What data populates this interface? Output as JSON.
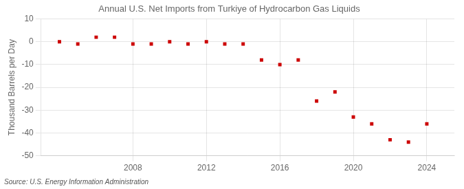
{
  "chart_data": {
    "type": "scatter",
    "title": "Annual U.S. Net Imports from Turkiye of Hydrocarbon Gas Liquids",
    "y_label": "Thousand Barrels per Day",
    "annotation": "Source: U.S. Energy Information Administration",
    "x": [
      2004,
      2005,
      2006,
      2007,
      2008,
      2009,
      2010,
      2011,
      2012,
      2013,
      2014,
      2015,
      2016,
      2017,
      2018,
      2019,
      2020,
      2021,
      2022,
      2023,
      2024
    ],
    "values": [
      0,
      -1,
      2,
      2,
      -1,
      -1,
      0,
      -1,
      0,
      -1,
      -1,
      -8,
      -10,
      -8,
      -26,
      -22,
      -33,
      -36,
      -43,
      -44,
      -36
    ],
    "color": "#cc0000",
    "marker": "square",
    "xlim": [
      2003.0,
      2025.5
    ],
    "xticks": [
      2008,
      2012,
      2016,
      2020,
      2024
    ],
    "ylim": [
      -50,
      10
    ],
    "yticks": [
      -50,
      -40,
      -30,
      -20,
      -10,
      0,
      10
    ],
    "grid": true
  }
}
